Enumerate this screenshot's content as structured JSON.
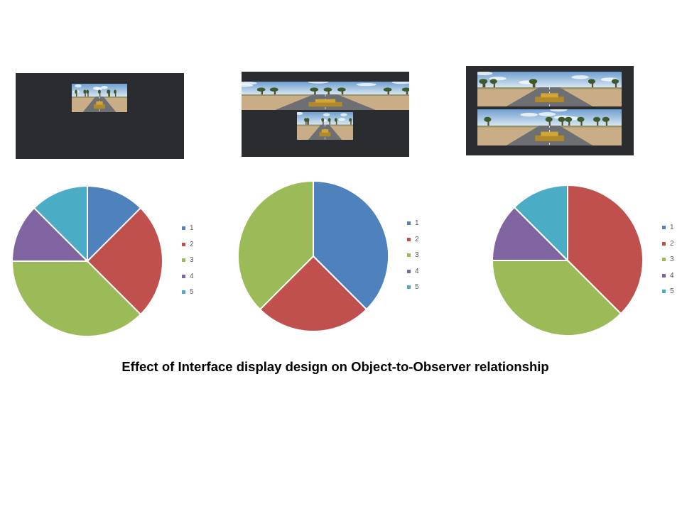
{
  "caption": "Effect of Interface display design on Object-to-Observer relationship",
  "colors": {
    "slice_1": "#4f81bd",
    "slice_2": "#c0504d",
    "slice_3": "#9bbb59",
    "slice_4": "#8064a2",
    "slice_5": "#4bacc6",
    "panel_background": "#2b2c30"
  },
  "screenshots": [
    {
      "layout": "single-view",
      "icon": "single-camera-view-image"
    },
    {
      "layout": "three-panoramic-plus-center-view",
      "icon": "multi-camera-view-image"
    },
    {
      "layout": "two-panoramic-strips",
      "icon": "stacked-panorama-view-image"
    }
  ],
  "chart_data": [
    {
      "type": "pie",
      "categories": [
        "1",
        "2",
        "3",
        "4",
        "5"
      ],
      "values": [
        1,
        2,
        3,
        1,
        1
      ],
      "legend": "right"
    },
    {
      "type": "pie",
      "categories": [
        "1",
        "2",
        "3",
        "4",
        "5"
      ],
      "values": [
        3,
        2,
        3,
        0,
        0
      ],
      "legend": "right"
    },
    {
      "type": "pie",
      "categories": [
        "1",
        "2",
        "3",
        "4",
        "5"
      ],
      "values": [
        0,
        3,
        3,
        1,
        1
      ],
      "legend": "right"
    }
  ]
}
